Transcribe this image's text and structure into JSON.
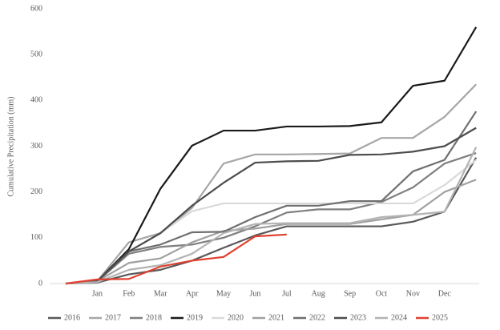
{
  "chart_data": {
    "type": "line",
    "y_label": "Cumulative Precipitation (mm)",
    "categories": [
      null,
      "Jan",
      "Feb",
      "Mar",
      "Apr",
      "May",
      "Jun",
      "Jul",
      "Aug",
      "Sep",
      "Oct",
      "Nov",
      "Dec",
      null
    ],
    "ylim": [
      0,
      600
    ],
    "yticks": [
      0,
      100,
      200,
      300,
      400,
      500,
      600
    ],
    "grid": false,
    "legend": "bottom",
    "series": [
      {
        "name": "2016",
        "color": "#595959",
        "values": [
          0,
          2,
          20,
          30,
          50,
          78,
          105,
          125,
          125,
          125,
          125,
          135,
          157,
          275
        ]
      },
      {
        "name": "2017",
        "color": "#a6a6a6",
        "values": [
          0,
          5,
          90,
          110,
          165,
          262,
          282,
          282,
          283,
          284,
          318,
          318,
          364,
          435
        ]
      },
      {
        "name": "2018",
        "color": "#7f7f7f",
        "values": [
          0,
          5,
          65,
          80,
          85,
          100,
          125,
          155,
          162,
          162,
          178,
          210,
          262,
          285
        ]
      },
      {
        "name": "2019",
        "color": "#1a1a1a",
        "values": [
          0,
          5,
          75,
          207,
          301,
          334,
          334,
          343,
          343,
          344,
          352,
          432,
          443,
          560
        ]
      },
      {
        "name": "2020",
        "color": "#d9d9d9",
        "values": [
          0,
          5,
          70,
          110,
          158,
          175,
          175,
          175,
          175,
          175,
          175,
          175,
          215,
          270
        ]
      },
      {
        "name": "2021",
        "color": "#a0a0a0",
        "values": [
          0,
          5,
          45,
          55,
          90,
          115,
          120,
          130,
          130,
          130,
          140,
          150,
          200,
          227
        ]
      },
      {
        "name": "2022",
        "color": "#6f6f6f",
        "values": [
          0,
          5,
          70,
          85,
          112,
          113,
          145,
          170,
          170,
          180,
          180,
          245,
          270,
          376
        ]
      },
      {
        "name": "2023",
        "color": "#4d4d4d",
        "values": [
          0,
          5,
          70,
          110,
          170,
          220,
          264,
          267,
          268,
          281,
          282,
          288,
          300,
          340
        ]
      },
      {
        "name": "2024",
        "color": "#b3b3b3",
        "values": [
          0,
          3,
          30,
          40,
          65,
          110,
          130,
          132,
          132,
          132,
          145,
          150,
          157,
          298
        ]
      },
      {
        "name": "2025",
        "color": "#e0402f",
        "values": [
          0,
          9,
          10,
          37,
          50,
          58,
          103,
          107,
          null,
          null,
          null,
          null,
          null,
          null
        ]
      }
    ]
  }
}
